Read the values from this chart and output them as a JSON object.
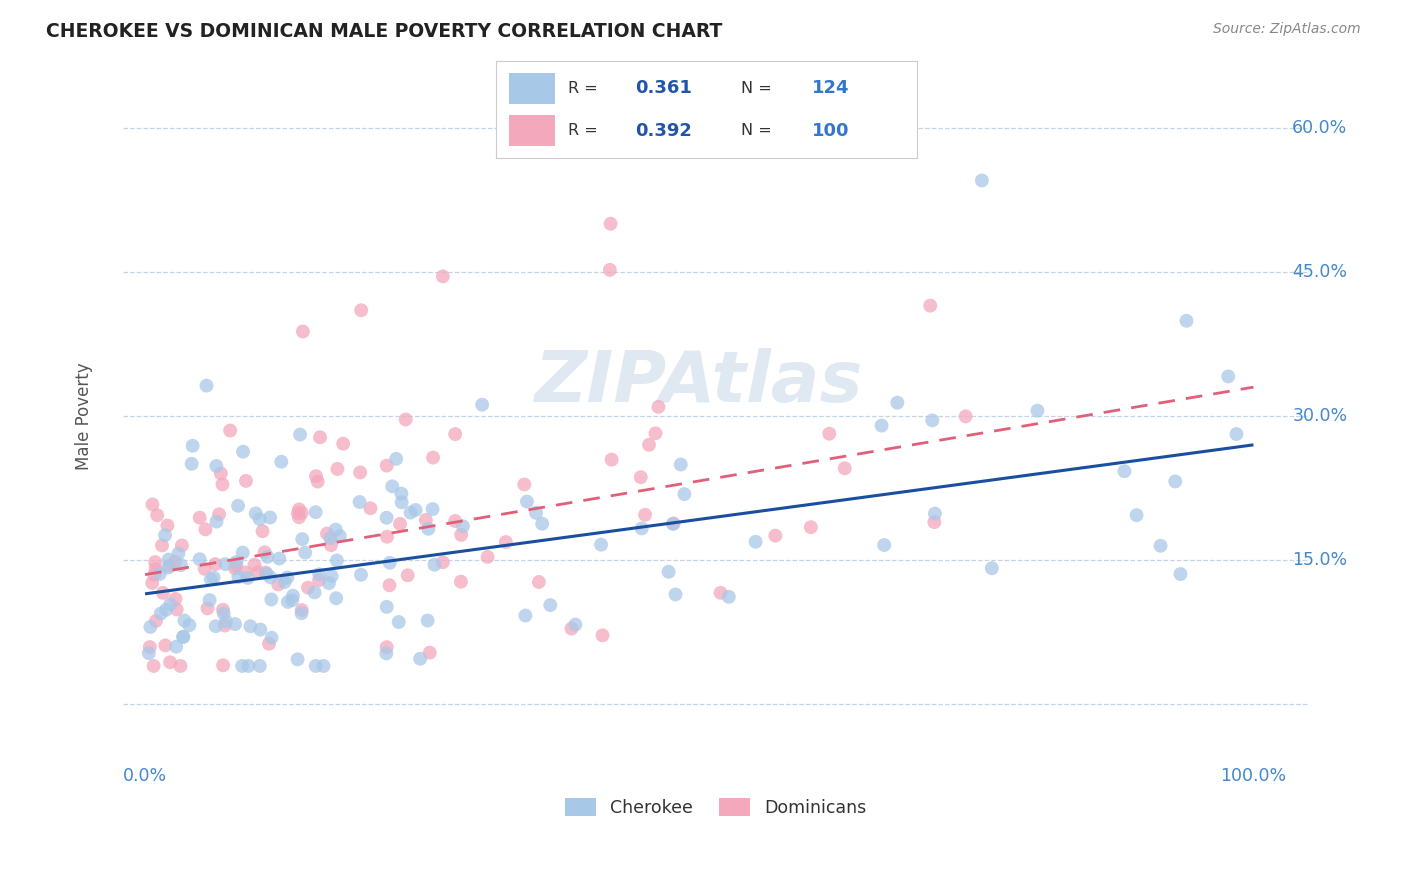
{
  "title": "CHEROKEE VS DOMINICAN MALE POVERTY CORRELATION CHART",
  "source": "Source: ZipAtlas.com",
  "ylabel": "Male Poverty",
  "ytick_vals": [
    0.0,
    0.15,
    0.3,
    0.45,
    0.6
  ],
  "ytick_labels": [
    "",
    "15.0%",
    "30.0%",
    "45.0%",
    "60.0%"
  ],
  "cherokee_color": "#a8c8e8",
  "dominican_color": "#f4a8bc",
  "cherokee_line_color": "#1a4fa0",
  "dominican_line_color": "#e0607a",
  "R_cherokee": 0.361,
  "N_cherokee": 124,
  "R_dominican": 0.392,
  "N_dominican": 100,
  "watermark": "ZIPAtlas",
  "legend_r_color": "#2255aa",
  "legend_n_color": "#3377cc",
  "cherokee_intercept": 0.115,
  "cherokee_slope": 0.155,
  "dominican_intercept": 0.135,
  "dominican_slope": 0.195
}
